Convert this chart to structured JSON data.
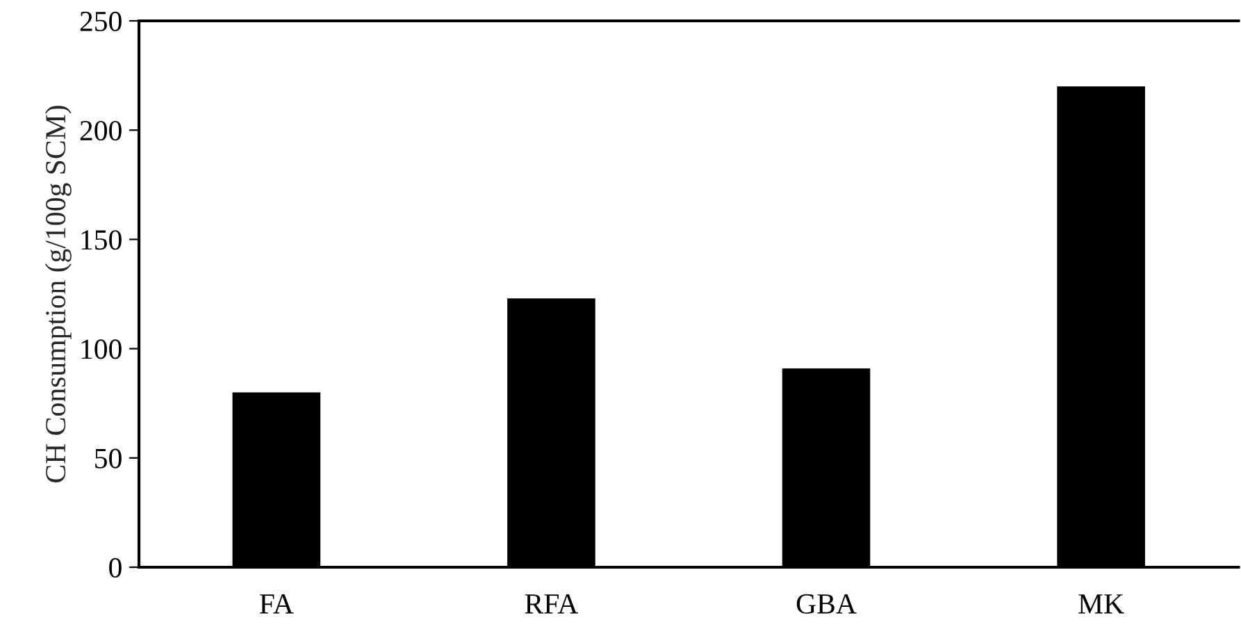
{
  "chart_data": {
    "type": "bar",
    "ylabel": "CH Consumption (g/100g SCM)",
    "categories": [
      "FA",
      "RFA",
      "GBA",
      "MK"
    ],
    "values": [
      80,
      123,
      91,
      220
    ],
    "color": "#000000",
    "ylim": [
      0,
      250
    ],
    "yticks": [
      0,
      50,
      100,
      150,
      200,
      250
    ],
    "grid": false,
    "legend": false
  }
}
